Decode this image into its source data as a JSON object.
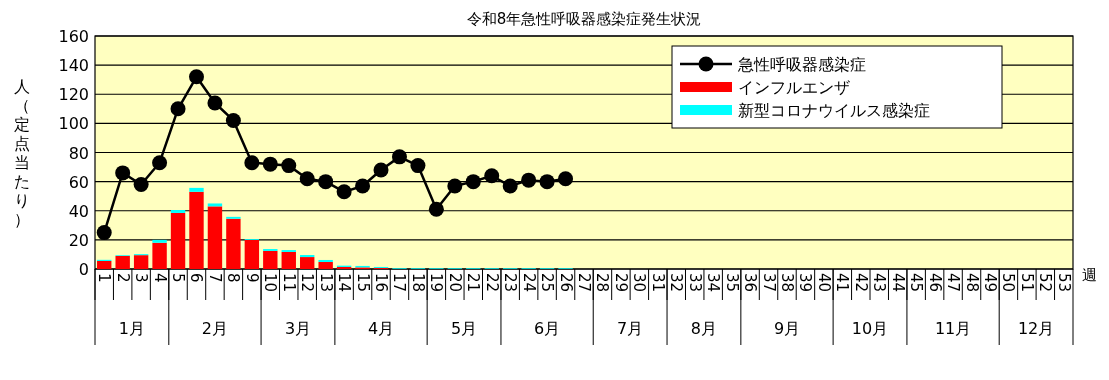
{
  "chart_data": {
    "type": "bar",
    "title": "令和8年急性呼吸器感染症発生状況",
    "ylabel": "人（定点当たり）",
    "xlabel": "週",
    "categories": [
      "1",
      "2",
      "3",
      "4",
      "5",
      "6",
      "7",
      "8",
      "9",
      "10",
      "11",
      "12",
      "13",
      "14",
      "15",
      "16",
      "17",
      "18",
      "19",
      "20",
      "21",
      "22",
      "23",
      "24",
      "25",
      "26",
      "27",
      "28",
      "29",
      "30",
      "31",
      "32",
      "33",
      "34",
      "35",
      "36",
      "37",
      "38",
      "39",
      "40",
      "41",
      "42",
      "43",
      "44",
      "45",
      "46",
      "47",
      "48",
      "49",
      "50",
      "51",
      "52",
      "53"
    ],
    "stacked": true,
    "ylim": [
      0,
      160
    ],
    "yticks": [
      0,
      20,
      40,
      60,
      80,
      100,
      120,
      140,
      160
    ],
    "grid": "y",
    "legend": "top right",
    "marker": "circle",
    "series": [
      {
        "name": "急性呼吸器感染症",
        "type": "line",
        "color": "#000000",
        "values": [
          25,
          66,
          58,
          73,
          110,
          132,
          114,
          102,
          73,
          72,
          71,
          62,
          60,
          53,
          57,
          68,
          77,
          71,
          41,
          57,
          60,
          64,
          57,
          61,
          60,
          62,
          null,
          null,
          null,
          null,
          null,
          null,
          null,
          null,
          null,
          null,
          null,
          null,
          null,
          null,
          null,
          null,
          null,
          null,
          null,
          null,
          null,
          null,
          null,
          null,
          null,
          null,
          null
        ]
      },
      {
        "name": "インフルエンザ",
        "color": "#ff0000",
        "values": [
          5.5,
          9,
          9.5,
          18,
          38.5,
          53,
          43,
          34.5,
          20,
          12.4,
          11.7,
          8.2,
          4.8,
          1.4,
          1.1,
          0.7,
          0,
          0,
          0,
          0,
          0,
          0,
          0,
          0,
          0,
          0,
          null,
          null,
          null,
          null,
          null,
          null,
          null,
          null,
          null,
          null,
          null,
          null,
          null,
          null,
          null,
          null,
          null,
          null,
          null,
          null,
          null,
          null,
          null,
          null,
          null,
          null,
          null
        ]
      },
      {
        "name": "新型コロナウイルス感染症",
        "color": "#00ffff",
        "values": [
          0.8,
          0.5,
          0.7,
          2,
          2,
          2.7,
          2,
          1.3,
          0.6,
          1.3,
          1.3,
          1.4,
          1.4,
          0.9,
          1,
          0.7,
          0.5,
          0.5,
          0.5,
          0.5,
          0.5,
          0.5,
          0.5,
          0.5,
          0.5,
          0.5,
          null,
          null,
          null,
          null,
          null,
          null,
          null,
          null,
          null,
          null,
          null,
          null,
          null,
          null,
          null,
          null,
          null,
          null,
          null,
          null,
          null,
          null,
          null,
          null,
          null,
          null,
          null
        ]
      }
    ],
    "annotations": [
      "1月",
      "2月",
      "3月",
      "4月",
      "5月",
      "6月",
      "7月",
      "8月",
      "9月",
      "10月",
      "11月",
      "12月"
    ]
  }
}
